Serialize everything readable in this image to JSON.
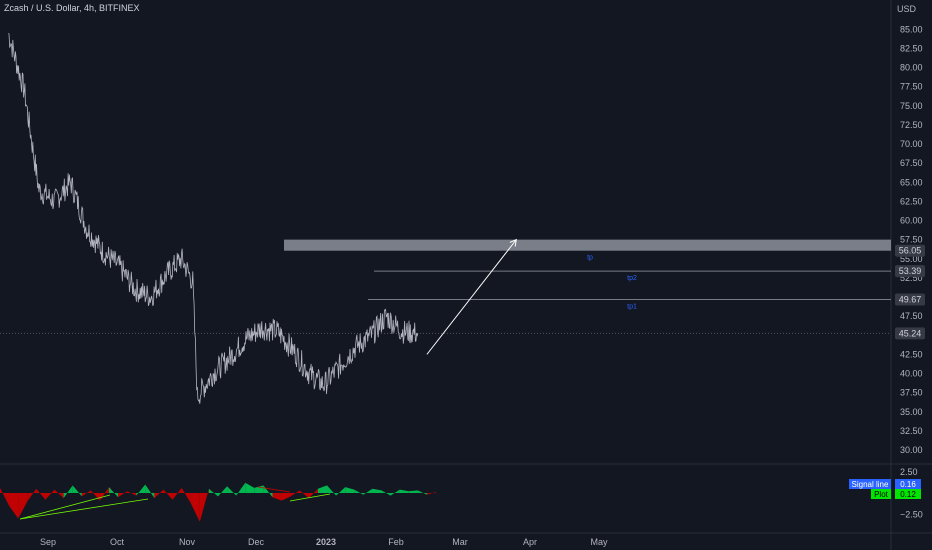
{
  "header": {
    "symbol_title": "Zcash / U.S. Dollar, 4h, BITFINEX",
    "currency": "USD"
  },
  "colors": {
    "background": "#131722",
    "price_line": "#b2b5be",
    "zone_fill": "#868993",
    "tp_line": "#787b86",
    "arrow": "#ffffff",
    "tp_text": "#2962ff",
    "osc_up": "#22ab94",
    "osc_down": "#f23645",
    "osc_signal_badge": "#2962ff",
    "osc_plot_badge": "#00e600",
    "last_price_badge": "#363a45"
  },
  "chart_data": [
    {
      "type": "line",
      "title": "Zcash / U.S. Dollar, 4h, BITFINEX",
      "ylabel": "USD",
      "ylim": [
        27.5,
        87.5
      ],
      "y_ticks": [
        30.0,
        32.5,
        35.0,
        37.5,
        40.0,
        42.5,
        47.5,
        52.5,
        55.0,
        57.5,
        60.0,
        62.5,
        65.0,
        67.5,
        70.0,
        72.5,
        75.0,
        77.5,
        80.0,
        82.5,
        85.0
      ],
      "y_tick_labels": [
        "30.00",
        "32.50",
        "35.00",
        "37.50",
        "40.00",
        "42.50",
        "47.50",
        "52.50",
        "55.00",
        "57.50",
        "60.00",
        "62.50",
        "65.00",
        "67.50",
        "70.00",
        "72.50",
        "75.00",
        "77.50",
        "80.00",
        "82.50",
        "85.00"
      ],
      "x_ticks": [
        "Sep",
        "Oct",
        "Nov",
        "Dec",
        "2023",
        "Feb",
        "Mar",
        "Apr",
        "May"
      ],
      "grid": false,
      "series": [
        {
          "x": [
            "Aug 18",
            "Aug 25",
            "Sep 1",
            "Sep 8",
            "Sep 15",
            "Sep 22",
            "Sep 29",
            "Oct 6",
            "Oct 13",
            "Oct 20",
            "Oct 27",
            "Nov 3",
            "Nov 8",
            "Nov 10",
            "Nov 17",
            "Nov 24",
            "Dec 1",
            "Dec 8",
            "Dec 15",
            "Dec 22",
            "Dec 29",
            "Jan 5",
            "Jan 12",
            "Jan 19",
            "Jan 26",
            "Feb 2",
            "Feb 9",
            "Feb 16"
          ],
          "values": [
            84.5,
            77.0,
            64.0,
            62.5,
            65.0,
            59.0,
            56.0,
            54.0,
            51.0,
            50.0,
            53.0,
            55.0,
            52.0,
            37.0,
            40.0,
            42.0,
            44.5,
            46.0,
            45.5,
            43.0,
            40.0,
            38.5,
            41.0,
            43.5,
            45.0,
            47.5,
            45.5,
            45.24
          ]
        }
      ],
      "last_price": 45.24,
      "levels": [
        {
          "label": "56.05",
          "value": 56.05
        },
        {
          "label": "53.39",
          "value": 53.39,
          "text": "tp2"
        },
        {
          "label": "49.67",
          "value": 49.67,
          "text": "tp1"
        },
        {
          "label": "45.24",
          "value": 45.24
        }
      ],
      "zone": {
        "from": 56.05,
        "to": 57.5,
        "text": "tp"
      },
      "arrow": {
        "from_date": "Feb 20",
        "from_value": 42.5,
        "to_date": "Mar 29",
        "to_value": 57.5
      }
    },
    {
      "type": "area",
      "ylim": [
        -3.5,
        3.0
      ],
      "y_ticks": [
        2.5,
        -2.5
      ],
      "y_tick_labels": [
        "2.50",
        "−2.50"
      ],
      "legend": [
        {
          "name": "Signal line",
          "value": "0.16"
        },
        {
          "name": "Plot",
          "value": "0.12"
        }
      ],
      "series": [
        {
          "name": "Plot",
          "values": [
            0.6,
            -1.5,
            -3.0,
            -1.0,
            0.5,
            -0.8,
            0.4,
            -0.6,
            0.9,
            -0.4,
            0.3,
            -0.9,
            0.7,
            -0.5,
            0.2,
            -0.3,
            1.0,
            -0.6,
            0.4,
            -0.8,
            0.6,
            -1.2,
            -3.4,
            0.5,
            -0.4,
            0.8,
            -0.3,
            1.2,
            0.6,
            0.9,
            -0.5,
            -0.9,
            -0.4,
            0.3,
            -0.6,
            0.5,
            0.9,
            -0.3,
            0.7,
            0.4,
            -0.2,
            0.5,
            0.3,
            -0.3,
            0.4,
            0.2,
            0.3,
            -0.2,
            0.12
          ]
        }
      ]
    }
  ]
}
